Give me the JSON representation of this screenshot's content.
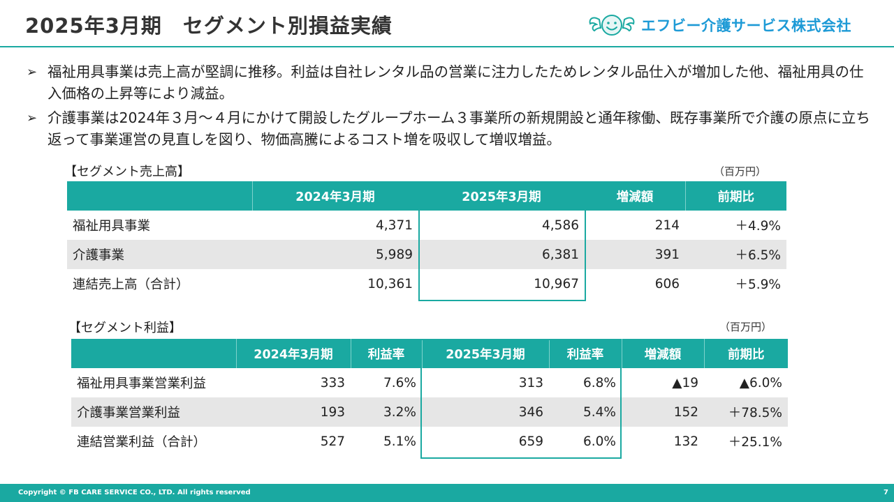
{
  "title": "2025年3月期　セグメント別損益実績",
  "logo": {
    "icon": "smiling-face-with-wings-icon",
    "text": "エフビー介護サービス株式会社",
    "colors": {
      "text": "#1d9ad6",
      "face": "#1aa9a1"
    }
  },
  "bullets": [
    "福祉用具事業は売上高が堅調に推移。利益は自社レンタル品の営業に注力したためレンタル品仕入が増加した他、福祉用具の仕入価格の上昇等により減益。",
    "介護事業は2024年３月～４月にかけて開設したグループホーム３事業所の新規開設と通年稼働、既存事業所で介護の原点に立ち返って事業運営の見直しを図り、物価高騰によるコスト増を吸収して増収増益。"
  ],
  "sales": {
    "label": "【セグメント売上高】",
    "unit": "（百万円）",
    "headers": [
      "",
      "2024年3月期",
      "2025年3月期",
      "増減額",
      "前期比"
    ],
    "rows": [
      [
        "福祉用具事業",
        "4,371",
        "4,586",
        "214",
        "＋4.9%"
      ],
      [
        "介護事業",
        "5,989",
        "6,381",
        "391",
        "＋6.5%"
      ],
      [
        "連結売上高（合計）",
        "10,361",
        "10,967",
        "606",
        "＋5.9%"
      ]
    ]
  },
  "profit": {
    "label": "【セグメント利益】",
    "unit": "（百万円）",
    "headers": [
      "",
      "2024年3月期",
      "利益率",
      "2025年3月期",
      "利益率",
      "増減額",
      "前期比"
    ],
    "rows": [
      [
        "福祉用具事業営業利益",
        "333",
        "7.6%",
        "313",
        "6.8%",
        "▲19",
        "▲6.0%"
      ],
      [
        "介護事業営業利益",
        "193",
        "3.2%",
        "346",
        "5.4%",
        "152",
        "＋78.5%"
      ],
      [
        "連結営業利益（合計）",
        "527",
        "5.1%",
        "659",
        "6.0%",
        "132",
        "＋25.1%"
      ]
    ]
  },
  "footer": {
    "copyright": "Copyright © FB CARE SERVICE CO., LTD. All rights reserved",
    "page": "7"
  },
  "colors": {
    "accent": "#1aa9a1",
    "row_gray": "#e6e6e6"
  }
}
